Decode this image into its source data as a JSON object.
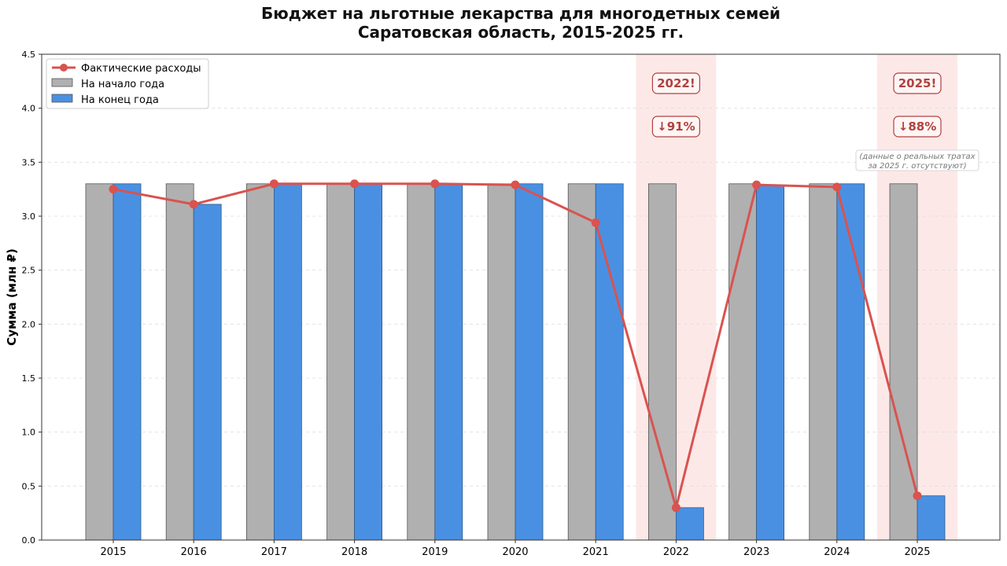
{
  "chart_data": {
    "type": "bar",
    "title_line1": "Бюджет на льготные лекарства для многодетных семей",
    "title_line2": "Саратовская область, 2015-2025 гг.",
    "ylabel": "Сумма (млн ₽)",
    "ylim": [
      0,
      4.5
    ],
    "yticks": [
      "0.0",
      "0.5",
      "1.0",
      "1.5",
      "2.0",
      "2.5",
      "3.0",
      "3.5",
      "4.0",
      "4.5"
    ],
    "grid": "horizontal-dashed",
    "legend_placement": "top-left",
    "categories": [
      "2015",
      "2016",
      "2017",
      "2018",
      "2019",
      "2020",
      "2021",
      "2022",
      "2023",
      "2024",
      "2025"
    ],
    "series": [
      {
        "name": "На начало года",
        "type": "bar",
        "color": "#b0b0b0",
        "values": [
          3.3,
          3.3,
          3.3,
          3.3,
          3.3,
          3.3,
          3.3,
          3.3,
          3.3,
          3.3,
          3.3
        ]
      },
      {
        "name": "На конец года",
        "type": "bar",
        "color": "#4a90e2",
        "values": [
          3.3,
          3.11,
          3.3,
          3.3,
          3.3,
          3.3,
          3.3,
          0.3,
          3.29,
          3.3,
          0.41
        ]
      },
      {
        "name": "Фактические расходы",
        "type": "line",
        "color": "#d9534f",
        "values": [
          3.25,
          3.11,
          3.3,
          3.3,
          3.3,
          3.29,
          2.94,
          0.3,
          3.29,
          3.27,
          0.41
        ]
      }
    ],
    "highlights": [
      {
        "category": "2022",
        "badge": "2022!",
        "change": "↓91%"
      },
      {
        "category": "2025",
        "badge": "2025!",
        "change": "↓88%",
        "note_line1": "(данные о реальных тратах",
        "note_line2": "за 2025 г. отсутствуют)"
      }
    ],
    "colors": {
      "highlight_fill": "#fde8e8",
      "badge_border": "#b0413e"
    }
  }
}
